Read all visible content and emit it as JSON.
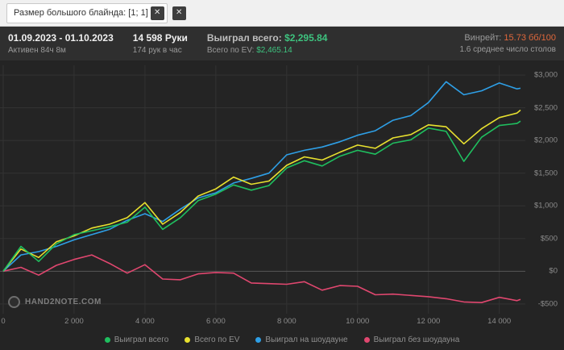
{
  "topbar": {
    "chip_label": "Размер большого блайнда: [1; 1]",
    "close_x": "✕"
  },
  "header": {
    "date_range": "01.09.2023 - 01.10.2023",
    "active_time": "Активен 84ч 8м",
    "hands": "14 598 Руки",
    "hands_per_hour": "174 рук в час",
    "won_label": "Выиграл всего:",
    "won_value": "$2,295.84",
    "ev_label": "Всего по EV:",
    "ev_value": "$2,465.14",
    "winrate_label": "Винрейт:",
    "winrate_value": "15.73 бб/100",
    "avg_tables": "1.6 среднее число столов"
  },
  "logo": {
    "text": "HAND2NOTE.COM"
  },
  "chart_data": {
    "type": "line",
    "title": "",
    "xlabel": "",
    "ylabel": "",
    "grid": true,
    "legend_position": "bottom",
    "xlim": [
      0,
      14598
    ],
    "ylim": [
      -650,
      3150
    ],
    "x": [
      0,
      500,
      1000,
      1500,
      2000,
      2500,
      3000,
      3500,
      4000,
      4500,
      5000,
      5500,
      6000,
      6500,
      7000,
      7500,
      8000,
      8500,
      9000,
      9500,
      10000,
      10500,
      11000,
      11500,
      12000,
      12500,
      13000,
      13500,
      14000,
      14500,
      14598
    ],
    "series": [
      {
        "name": "Выиграл всего",
        "color": "#1fbf5f",
        "values": [
          0,
          380,
          150,
          420,
          560,
          620,
          680,
          750,
          980,
          640,
          820,
          1080,
          1180,
          1320,
          1240,
          1310,
          1580,
          1690,
          1610,
          1760,
          1850,
          1790,
          1960,
          2010,
          2190,
          2140,
          1680,
          2050,
          2230,
          2260,
          2295.84
        ]
      },
      {
        "name": "Всего по EV",
        "color": "#e8e12f",
        "values": [
          0,
          340,
          210,
          450,
          540,
          660,
          720,
          820,
          1050,
          720,
          900,
          1150,
          1260,
          1440,
          1330,
          1380,
          1620,
          1750,
          1700,
          1820,
          1930,
          1880,
          2040,
          2090,
          2240,
          2210,
          1950,
          2180,
          2350,
          2420,
          2465.14
        ]
      },
      {
        "name": "Выиграл на шоудауне",
        "color": "#2e9fe6",
        "values": [
          0,
          250,
          300,
          380,
          480,
          560,
          640,
          780,
          880,
          760,
          950,
          1120,
          1200,
          1350,
          1420,
          1500,
          1780,
          1850,
          1900,
          1980,
          2080,
          2150,
          2310,
          2380,
          2580,
          2900,
          2700,
          2760,
          2880,
          2790,
          2800
        ]
      },
      {
        "name": "Выиграл без шоудауна",
        "color": "#e0476f",
        "values": [
          0,
          60,
          -60,
          90,
          180,
          250,
          120,
          -30,
          100,
          -120,
          -130,
          -40,
          -20,
          -30,
          -180,
          -190,
          -200,
          -160,
          -290,
          -220,
          -230,
          -360,
          -350,
          -370,
          -390,
          -420,
          -470,
          -480,
          -400,
          -450,
          -430
        ]
      }
    ],
    "y_ticks": [
      {
        "v": 3000,
        "label": "$3,000"
      },
      {
        "v": 2500,
        "label": "$2,500"
      },
      {
        "v": 2000,
        "label": "$2,000"
      },
      {
        "v": 1500,
        "label": "$1,500"
      },
      {
        "v": 1000,
        "label": "$1,000"
      },
      {
        "v": 500,
        "label": "$500"
      },
      {
        "v": 0,
        "label": "$0"
      },
      {
        "v": -500,
        "label": "-$500"
      }
    ],
    "x_ticks": [
      {
        "v": 0,
        "label": "0"
      },
      {
        "v": 2000,
        "label": "2 000"
      },
      {
        "v": 4000,
        "label": "4 000"
      },
      {
        "v": 6000,
        "label": "6 000"
      },
      {
        "v": 8000,
        "label": "8 000"
      },
      {
        "v": 10000,
        "label": "10 000"
      },
      {
        "v": 12000,
        "label": "12 000"
      },
      {
        "v": 14000,
        "label": "14 000"
      }
    ]
  }
}
